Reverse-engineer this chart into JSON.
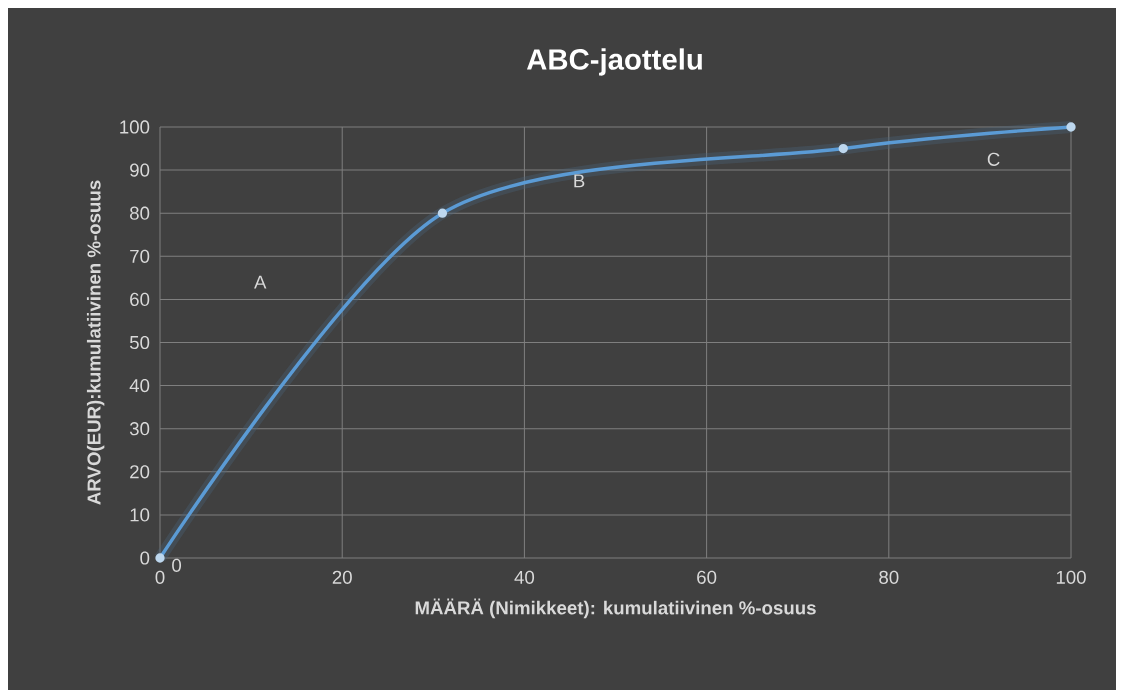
{
  "chart_data": {
    "type": "line",
    "title": "ABC-jaottelu",
    "xlabel": "MÄÄRÄ (Nimikkeet): kumulatiivinen %-osuus",
    "ylabel": "ARVO(EUR):kumulatiivinen %-osuus",
    "x": [
      0,
      31,
      75,
      100
    ],
    "values": [
      0,
      80,
      95,
      100
    ],
    "color": "#5b9bd5",
    "marker": "circle",
    "line_style": "solid",
    "grid": true,
    "xlim": [
      0,
      100
    ],
    "ylim": [
      0,
      100
    ],
    "xticks": [
      0,
      20,
      40,
      60,
      80,
      100
    ],
    "yticks": [
      0,
      10,
      20,
      30,
      40,
      50,
      60,
      70,
      80,
      90,
      100
    ],
    "annotations": [
      {
        "text": "0",
        "x": 0,
        "y": 0
      },
      "A",
      "B",
      "C"
    ]
  }
}
